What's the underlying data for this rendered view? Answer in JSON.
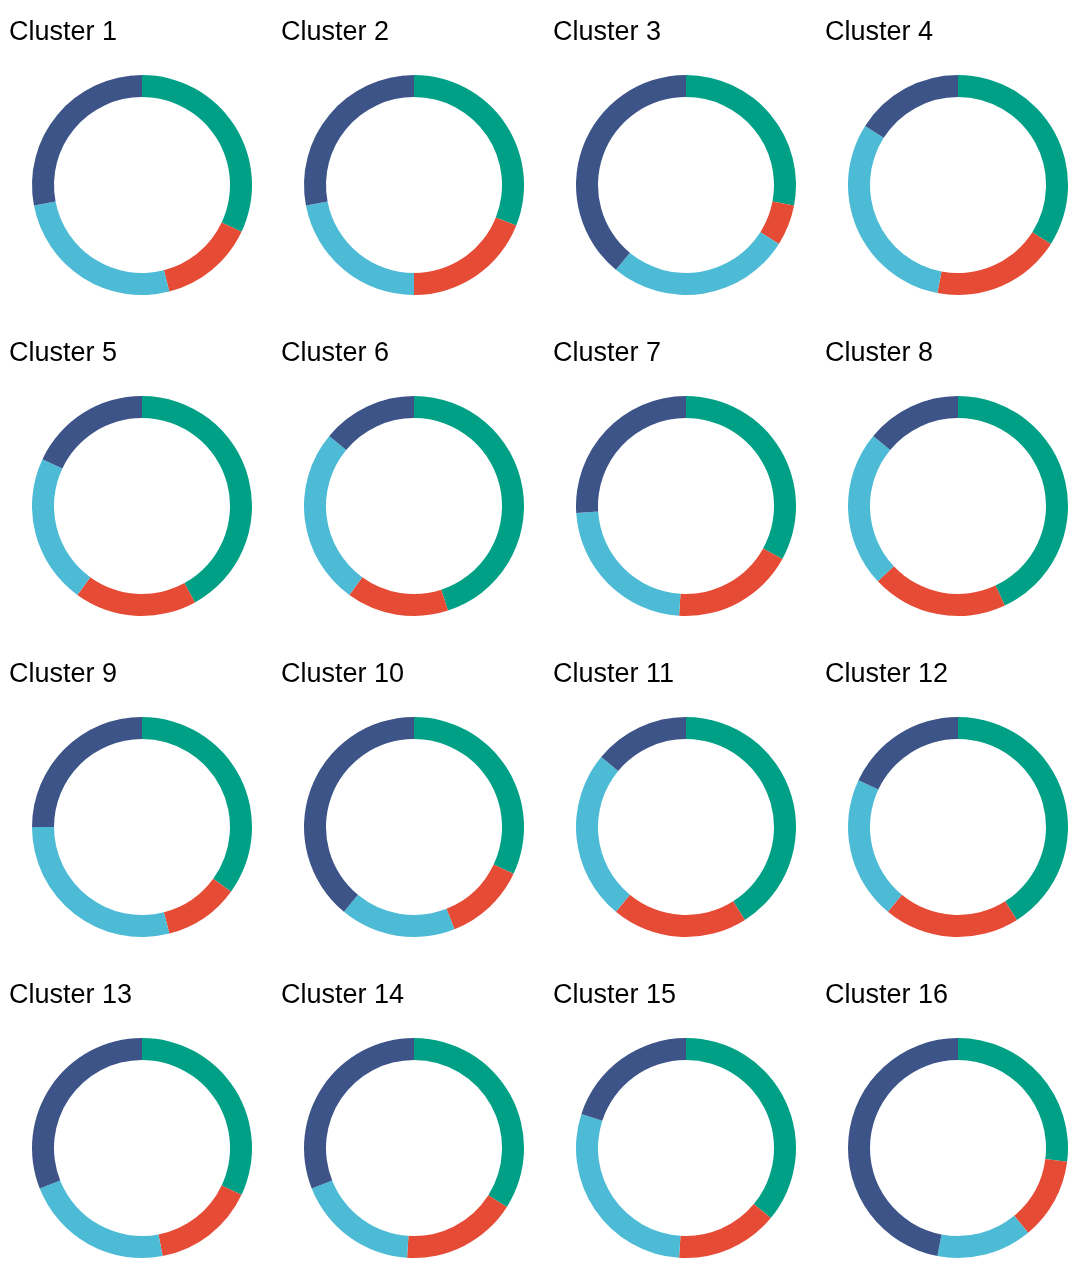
{
  "chart_data": [
    {
      "type": "donut",
      "title": "Cluster 1",
      "categories": [
        null,
        null,
        null,
        null
      ],
      "values": [
        32,
        14,
        26,
        28
      ],
      "colors": [
        "#00a087",
        "#e64b35",
        "#4dbbd5",
        "#3c5488"
      ]
    },
    {
      "type": "donut",
      "title": "Cluster 2",
      "categories": [
        null,
        null,
        null,
        null
      ],
      "values": [
        31,
        19,
        22,
        28
      ],
      "colors": [
        "#00a087",
        "#e64b35",
        "#4dbbd5",
        "#3c5488"
      ]
    },
    {
      "type": "donut",
      "title": "Cluster 3",
      "categories": [
        null,
        null,
        null,
        null
      ],
      "values": [
        28,
        6,
        27,
        39
      ],
      "colors": [
        "#00a087",
        "#e64b35",
        "#4dbbd5",
        "#3c5488"
      ]
    },
    {
      "type": "donut",
      "title": "Cluster 4",
      "categories": [
        null,
        null,
        null,
        null
      ],
      "values": [
        34,
        19,
        31,
        16
      ],
      "colors": [
        "#00a087",
        "#e64b35",
        "#4dbbd5",
        "#3c5488"
      ]
    },
    {
      "type": "donut",
      "title": "Cluster 5",
      "categories": [
        null,
        null,
        null,
        null
      ],
      "values": [
        42,
        18,
        22,
        18
      ],
      "colors": [
        "#00a087",
        "#e64b35",
        "#4dbbd5",
        "#3c5488"
      ]
    },
    {
      "type": "donut",
      "title": "Cluster 6",
      "categories": [
        null,
        null,
        null,
        null
      ],
      "values": [
        45,
        15,
        26,
        14
      ],
      "colors": [
        "#00a087",
        "#e64b35",
        "#4dbbd5",
        "#3c5488"
      ]
    },
    {
      "type": "donut",
      "title": "Cluster 7",
      "categories": [
        null,
        null,
        null,
        null
      ],
      "values": [
        33,
        18,
        23,
        26
      ],
      "colors": [
        "#00a087",
        "#e64b35",
        "#4dbbd5",
        "#3c5488"
      ]
    },
    {
      "type": "donut",
      "title": "Cluster 8",
      "categories": [
        null,
        null,
        null,
        null
      ],
      "values": [
        43,
        20,
        23,
        14
      ],
      "colors": [
        "#00a087",
        "#e64b35",
        "#4dbbd5",
        "#3c5488"
      ]
    },
    {
      "type": "donut",
      "title": "Cluster 9",
      "categories": [
        null,
        null,
        null,
        null
      ],
      "values": [
        35,
        11,
        29,
        25
      ],
      "colors": [
        "#00a087",
        "#e64b35",
        "#4dbbd5",
        "#3c5488"
      ]
    },
    {
      "type": "donut",
      "title": "Cluster 10",
      "categories": [
        null,
        null,
        null,
        null
      ],
      "values": [
        32,
        12,
        17,
        39
      ],
      "colors": [
        "#00a087",
        "#e64b35",
        "#4dbbd5",
        "#3c5488"
      ]
    },
    {
      "type": "donut",
      "title": "Cluster 11",
      "categories": [
        null,
        null,
        null,
        null
      ],
      "values": [
        41,
        20,
        25,
        14
      ],
      "colors": [
        "#00a087",
        "#e64b35",
        "#4dbbd5",
        "#3c5488"
      ]
    },
    {
      "type": "donut",
      "title": "Cluster 12",
      "categories": [
        null,
        null,
        null,
        null
      ],
      "values": [
        41,
        20,
        21,
        18
      ],
      "colors": [
        "#00a087",
        "#e64b35",
        "#4dbbd5",
        "#3c5488"
      ]
    },
    {
      "type": "donut",
      "title": "Cluster 13",
      "categories": [
        null,
        null,
        null,
        null
      ],
      "values": [
        32,
        15,
        22,
        31
      ],
      "colors": [
        "#00a087",
        "#e64b35",
        "#4dbbd5",
        "#3c5488"
      ]
    },
    {
      "type": "donut",
      "title": "Cluster 14",
      "categories": [
        null,
        null,
        null,
        null
      ],
      "values": [
        34,
        17,
        18,
        31
      ],
      "colors": [
        "#00a087",
        "#e64b35",
        "#4dbbd5",
        "#3c5488"
      ]
    },
    {
      "type": "donut",
      "title": "Cluster 15",
      "categories": [
        null,
        null,
        null,
        null
      ],
      "values": [
        36,
        15,
        29,
        20
      ],
      "colors": [
        "#00a087",
        "#e64b35",
        "#4dbbd5",
        "#3c5488"
      ]
    },
    {
      "type": "donut",
      "title": "Cluster 16",
      "categories": [
        null,
        null,
        null,
        null
      ],
      "values": [
        27,
        12,
        14,
        47
      ],
      "colors": [
        "#00a087",
        "#e64b35",
        "#4dbbd5",
        "#3c5488"
      ]
    }
  ]
}
